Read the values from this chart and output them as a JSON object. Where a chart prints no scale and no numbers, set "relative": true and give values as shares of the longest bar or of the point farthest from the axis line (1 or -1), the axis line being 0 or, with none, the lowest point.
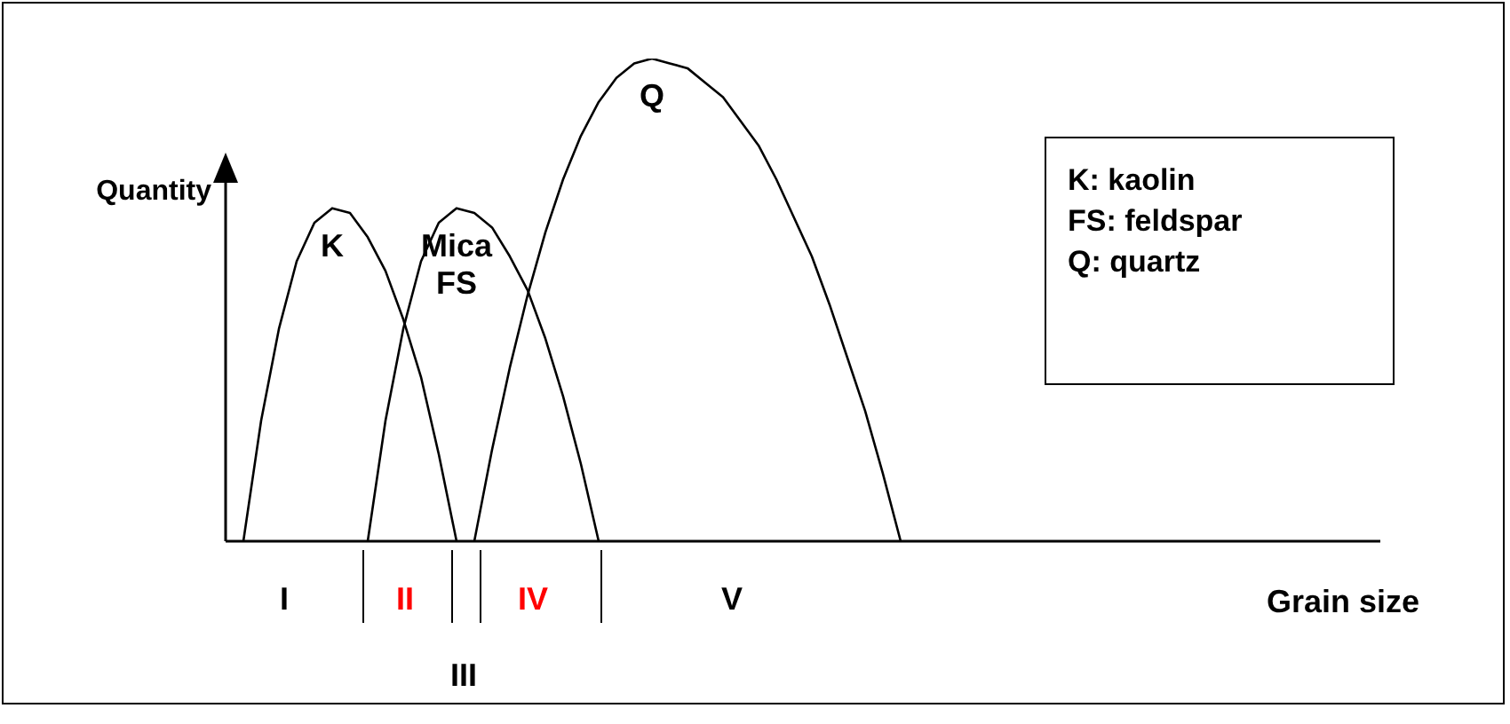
{
  "chart_data": {
    "type": "line",
    "relative": true,
    "xlabel": "Grain size",
    "ylabel": "Quantity",
    "legend": false,
    "marker": "none",
    "line_style": "solid",
    "categories": [
      null,
      null,
      null,
      null,
      null,
      null,
      null,
      null,
      null,
      null,
      null,
      null,
      null,
      null,
      null,
      null,
      null,
      null,
      null,
      null,
      null,
      null,
      null,
      null,
      null,
      null,
      null,
      null,
      null,
      null,
      null,
      null,
      null,
      null,
      null,
      null,
      null,
      null,
      null,
      null,
      null,
      null,
      null,
      null,
      null,
      null,
      null,
      null,
      null,
      null,
      null,
      null,
      null,
      null,
      null,
      null,
      null,
      null,
      null,
      null,
      null,
      null,
      null,
      null,
      null,
      null
    ],
    "series": [
      {
        "name": "K",
        "color": "#000000",
        "values": [
          null,
          0,
          0.25,
          0.44,
          0.58,
          0.66,
          0.69,
          0.68,
          0.63,
          0.56,
          0.46,
          0.34,
          0.18,
          0,
          null,
          null,
          null,
          null,
          null,
          null,
          null,
          null,
          null,
          null,
          null,
          null,
          null,
          null,
          null,
          null,
          null,
          null,
          null,
          null,
          null,
          null,
          null,
          null,
          null,
          null,
          null,
          null,
          null,
          null,
          null,
          null,
          null,
          null,
          null,
          null,
          null,
          null,
          null,
          null,
          null,
          null,
          null,
          null,
          null,
          null,
          null,
          null,
          null,
          null,
          null,
          null
        ]
      },
      {
        "name": "Mica\nFS",
        "color": "#000000",
        "values": [
          null,
          null,
          null,
          null,
          null,
          null,
          null,
          null,
          0,
          0.25,
          0.44,
          0.58,
          0.66,
          0.69,
          0.68,
          0.65,
          0.59,
          0.52,
          0.42,
          0.3,
          0.16,
          0,
          null,
          null,
          null,
          null,
          null,
          null,
          null,
          null,
          null,
          null,
          null,
          null,
          null,
          null,
          null,
          null,
          null,
          null,
          null,
          null,
          null,
          null,
          null,
          null,
          null,
          null,
          null,
          null,
          null,
          null,
          null,
          null,
          null,
          null,
          null,
          null,
          null,
          null,
          null,
          null,
          null,
          null,
          null,
          null
        ]
      },
      {
        "name": "Q",
        "color": "#000000",
        "values": [
          null,
          null,
          null,
          null,
          null,
          null,
          null,
          null,
          null,
          null,
          null,
          null,
          null,
          null,
          0,
          0.19,
          0.36,
          0.51,
          0.64,
          0.75,
          0.84,
          0.91,
          0.96,
          0.99,
          1,
          0.99,
          0.98,
          0.95,
          0.92,
          0.87,
          0.82,
          0.75,
          0.67,
          0.59,
          0.49,
          0.38,
          0.27,
          0.14,
          0,
          null,
          null,
          null,
          null,
          null,
          null,
          null,
          null,
          null,
          null,
          null,
          null,
          null,
          null,
          null,
          null,
          null,
          null,
          null,
          null,
          null,
          null,
          null,
          null,
          null,
          null,
          null
        ]
      }
    ],
    "annotations": [
      "K: kaolin",
      "FS: feldspar",
      "Q: quartz",
      "I",
      "II",
      "III",
      "IV",
      "V"
    ]
  }
}
